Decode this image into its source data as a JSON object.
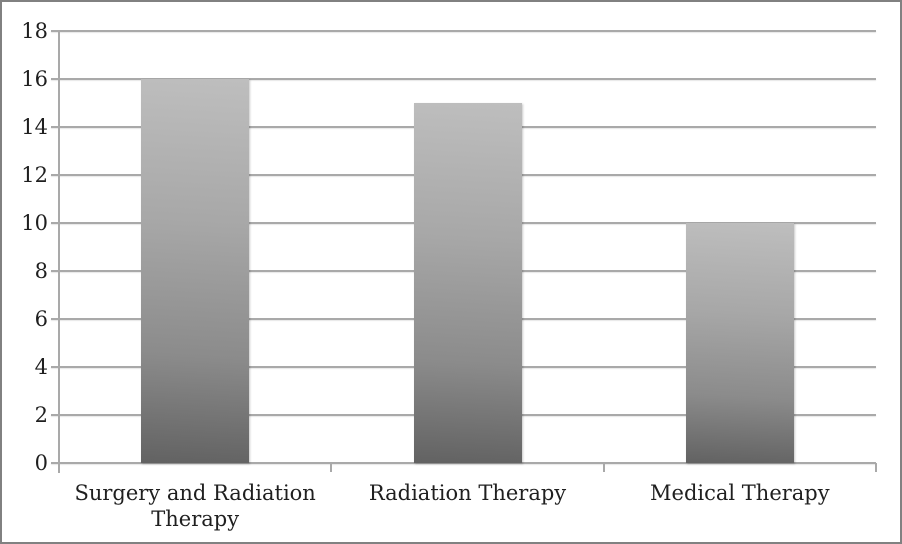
{
  "chart_data": {
    "type": "bar",
    "categories": [
      "Surgery and Radiation Therapy",
      "Radiation Therapy",
      "Medical Therapy"
    ],
    "values": [
      16,
      15,
      10
    ],
    "title": "",
    "xlabel": "",
    "ylabel": "",
    "ylim": [
      0,
      18
    ],
    "ytick_step": 2,
    "grid": true,
    "legend": "none",
    "colors": {
      "bar_gradient_top": "#bebebe",
      "bar_gradient_bottom": "#626262",
      "gridline": "#a9a9a9",
      "axis": "#a9a9a9",
      "text": "#1f1f1f",
      "border": "#818181",
      "background": "#ffffff"
    }
  }
}
